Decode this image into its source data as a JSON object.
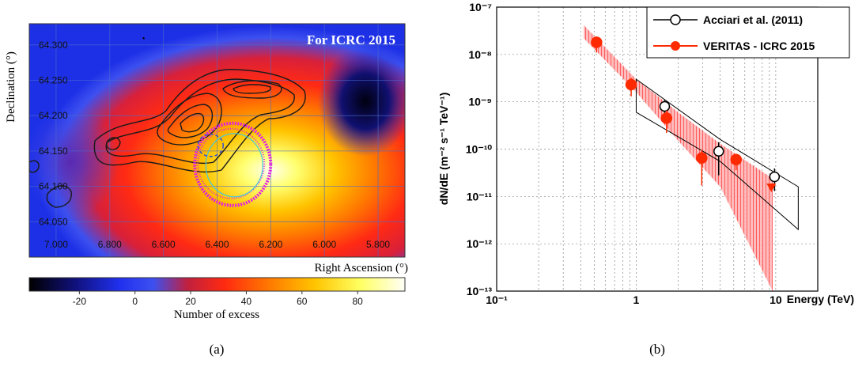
{
  "chart_data": [
    {
      "type": "heatmap",
      "panel_label": "(a)",
      "banner": "For ICRC 2015",
      "xlabel": "Right Ascension (°)",
      "ylabel": "Declination (°)",
      "x_ticks": [
        "7.000",
        "6.800",
        "6.600",
        "6.400",
        "6.200",
        "6.000",
        "5.800"
      ],
      "y_ticks": [
        "64.300",
        "64.250",
        "64.200",
        "64.150",
        "64.100",
        "64.050"
      ],
      "xlim": [
        7.1,
        5.7
      ],
      "ylim": [
        64.0,
        64.33
      ],
      "colorbar": {
        "label": "Number of excess",
        "ticks": [
          "-20",
          "0",
          "20",
          "40",
          "60",
          "80"
        ],
        "range": [
          -38,
          97
        ]
      },
      "peak": {
        "ra": 6.33,
        "dec": 64.13,
        "value": 95
      },
      "colors": {
        "contours": "#1a1a1a",
        "shell": "#e020e0",
        "ring": "#40c8e0",
        "dashed": "#3050d0"
      }
    },
    {
      "type": "scatter",
      "panel_label": "(b)",
      "xlabel": "Energy (TeV)",
      "ylabel": "dN/dE (m⁻² s⁻¹ TeV⁻¹)",
      "x_scale": "log",
      "y_scale": "log",
      "xlim": [
        0.1,
        20
      ],
      "ylim": [
        1e-13,
        1e-07
      ],
      "x_tick_labels": [
        "10⁻¹",
        "1",
        "10"
      ],
      "y_tick_labels": [
        "10⁻⁷",
        "10⁻⁸",
        "10⁻⁹",
        "10⁻¹⁰",
        "10⁻¹¹",
        "10⁻¹²",
        "10⁻¹³"
      ],
      "grid": true,
      "legend_position": "top-right",
      "series": [
        {
          "name": "Acciari et al. (2011)",
          "marker": "open-circle",
          "color": "#000000",
          "points": [
            {
              "x": 1.6,
              "y": 8e-10,
              "ylo": 5.5e-10,
              "yhi": 1.1e-09
            },
            {
              "x": 3.9,
              "y": 9e-11,
              "ylo": 2.8e-11,
              "yhi": 1.4e-10
            },
            {
              "x": 9.8,
              "y": 2.6e-11,
              "ylo": 1.3e-11,
              "yhi": 3.9e-11
            }
          ]
        },
        {
          "name": "VERITAS - ICRC 2015",
          "marker": "filled-circle",
          "color": "#ff2a00",
          "points": [
            {
              "x": 0.52,
              "y": 1.8e-08,
              "ylo": 1.1e-08,
              "yhi": 2.4e-08
            },
            {
              "x": 0.92,
              "y": 2.3e-09,
              "ylo": 1.3e-09,
              "yhi": 3.2e-09
            },
            {
              "x": 1.65,
              "y": 4.5e-10,
              "ylo": 2.2e-10,
              "yhi": 6.5e-10
            },
            {
              "x": 2.95,
              "y": 6.5e-11,
              "ylo": 1.7e-11,
              "yhi": 9.5e-11
            },
            {
              "x": 5.2,
              "y": 6e-11,
              "ylo": 3.6e-11,
              "yhi": 8e-11
            }
          ],
          "upper_limits": [
            {
              "x": 9.3,
              "y": 1.55e-11
            }
          ]
        }
      ],
      "bands": [
        {
          "series": "VERITAS - ICRC 2015",
          "color": "#ff5050",
          "upper": [
            [
              0.42,
              4.2e-08
            ],
            [
              1.0,
              3e-09
            ],
            [
              2.0,
              6e-10
            ],
            [
              4.0,
              1.3e-10
            ],
            [
              9.5,
              2.4e-11
            ]
          ],
          "lower": [
            [
              0.42,
              2.2e-08
            ],
            [
              1.0,
              1.6e-09
            ],
            [
              2.0,
              1.5e-10
            ],
            [
              4.0,
              1.6e-11
            ],
            [
              9.5,
              1e-13
            ]
          ]
        },
        {
          "series": "Acciari et al. (2011)",
          "color": "#000000",
          "upper": [
            [
              1.0,
              3e-09
            ],
            [
              4.0,
              1.6e-10
            ],
            [
              14.5,
              1.6e-11
            ]
          ],
          "lower": [
            [
              1.0,
              6e-10
            ],
            [
              4.0,
              5.5e-11
            ],
            [
              14.5,
              2e-12
            ]
          ]
        }
      ]
    }
  ]
}
